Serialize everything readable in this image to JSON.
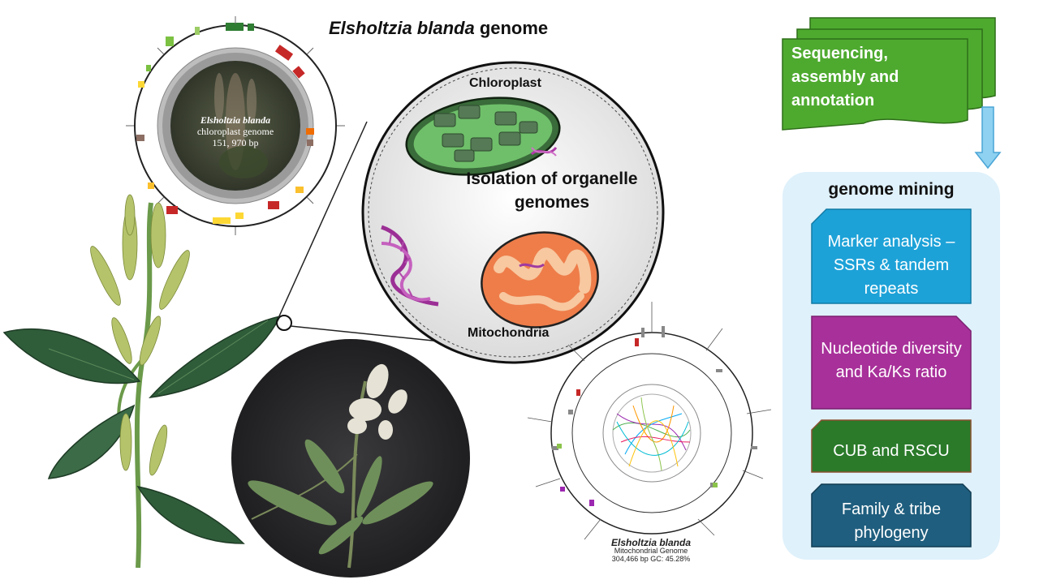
{
  "title": {
    "species": "Elsholtzia blanda",
    "rest": " genome"
  },
  "workflow": {
    "sequencing_label": "Sequencing, assembly and annotation",
    "mining_title": "genome mining",
    "boxes": [
      {
        "label": "Marker analysis – SSRs & tandem repeats",
        "color": "#1da2d8"
      },
      {
        "label": "Nucleotide diversity and Ka/Ks ratio",
        "color": "#a8309a"
      },
      {
        "label": "CUB and RSCU",
        "color": "#2a7a2a"
      },
      {
        "label": "Family & tribe phylogeny",
        "color": "#1f5e7e"
      }
    ],
    "accent_green": "#4eaa2f"
  },
  "cell": {
    "chloroplast_label": "Chloroplast",
    "isolation_label": "Isolation of organelle genomes",
    "mitochondria_label": "Mitochondria"
  },
  "chloroplast_map": {
    "species": "Elsholtzia blanda",
    "line1": "chloroplast genome",
    "line2": "151, 970 bp"
  },
  "mitochondrial_map": {
    "species": "Elsholtzia blanda",
    "line1": "Mitochondrial Genome",
    "line2": "304,466 bp  GC: 45.28%"
  }
}
